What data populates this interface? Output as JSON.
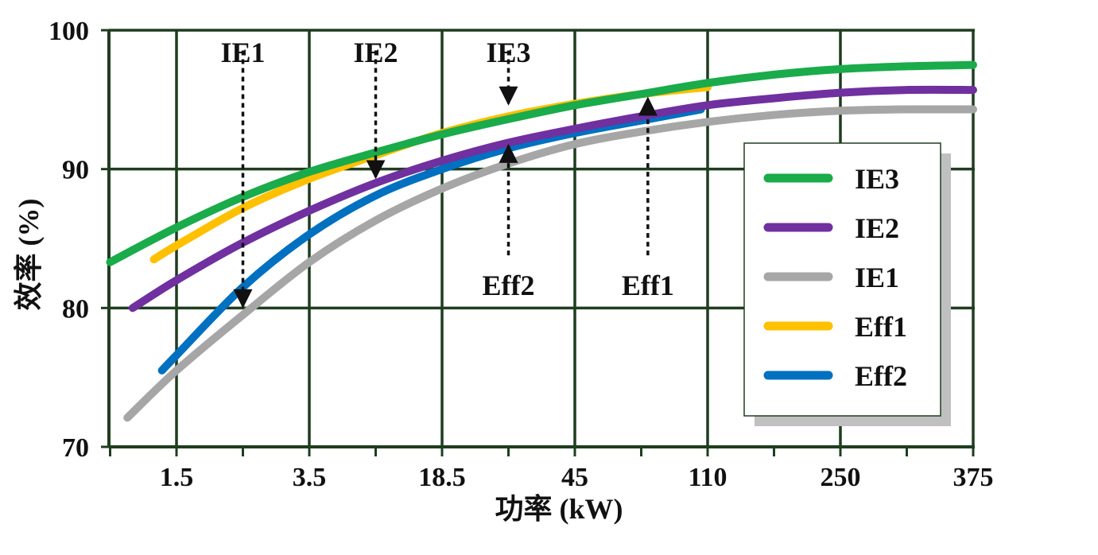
{
  "chart_data": {
    "type": "line",
    "title": "",
    "xlabel": "功率 (kW)",
    "ylabel": "效率 (%)",
    "categories": [
      "1.5",
      "3.5",
      "18.5",
      "45",
      "110",
      "250",
      "375"
    ],
    "ylim": [
      70,
      100
    ],
    "yticks": [
      "70",
      "80",
      "90",
      "100"
    ],
    "grid": true,
    "legend_position": "right",
    "series": [
      {
        "name": "IE3",
        "color": "#1aab4b",
        "points": [
          [
            -0.5,
            83.3
          ],
          [
            0.0,
            85.8
          ],
          [
            0.5,
            88.0
          ],
          [
            1.0,
            89.8
          ],
          [
            1.5,
            91.2
          ],
          [
            2.0,
            92.5
          ],
          [
            2.5,
            93.6
          ],
          [
            3.0,
            94.6
          ],
          [
            3.5,
            95.4
          ],
          [
            4.0,
            96.2
          ],
          [
            4.5,
            96.8
          ],
          [
            5.0,
            97.2
          ],
          [
            5.5,
            97.4
          ],
          [
            6.0,
            97.5
          ]
        ]
      },
      {
        "name": "IE2",
        "color": "#7030a0",
        "points": [
          [
            -0.33,
            80.0
          ],
          [
            0.0,
            82.0
          ],
          [
            0.5,
            84.7
          ],
          [
            1.0,
            87.0
          ],
          [
            1.5,
            89.0
          ],
          [
            2.0,
            90.6
          ],
          [
            2.5,
            91.9
          ],
          [
            3.0,
            92.9
          ],
          [
            3.5,
            93.8
          ],
          [
            4.0,
            94.6
          ],
          [
            4.5,
            95.1
          ],
          [
            5.0,
            95.5
          ],
          [
            5.5,
            95.7
          ],
          [
            6.0,
            95.7
          ]
        ]
      },
      {
        "name": "IE1",
        "color": "#a6a6a6",
        "points": [
          [
            -0.37,
            72.1
          ],
          [
            0.0,
            75.5
          ],
          [
            0.5,
            79.5
          ],
          [
            1.0,
            83.3
          ],
          [
            1.5,
            86.3
          ],
          [
            2.0,
            88.6
          ],
          [
            2.5,
            90.4
          ],
          [
            3.0,
            91.8
          ],
          [
            3.5,
            92.7
          ],
          [
            4.0,
            93.4
          ],
          [
            4.5,
            93.9
          ],
          [
            5.0,
            94.2
          ],
          [
            5.5,
            94.3
          ],
          [
            6.0,
            94.3
          ]
        ]
      },
      {
        "name": "Eff1",
        "color": "#ffc000",
        "points": [
          [
            -0.17,
            83.5
          ],
          [
            0.0,
            84.5
          ],
          [
            0.5,
            87.2
          ],
          [
            1.0,
            89.3
          ],
          [
            1.5,
            91.0
          ],
          [
            2.0,
            92.6
          ],
          [
            2.5,
            93.8
          ],
          [
            3.0,
            94.7
          ],
          [
            3.5,
            95.4
          ],
          [
            4.0,
            95.9
          ]
        ]
      },
      {
        "name": "Eff2",
        "color": "#0070c0",
        "points": [
          [
            -0.11,
            75.5
          ],
          [
            0.0,
            76.6
          ],
          [
            0.5,
            81.5
          ],
          [
            1.0,
            85.3
          ],
          [
            1.5,
            88.1
          ],
          [
            2.0,
            90.0
          ],
          [
            2.5,
            91.5
          ],
          [
            3.0,
            92.6
          ],
          [
            3.5,
            93.5
          ],
          [
            3.95,
            94.3
          ]
        ]
      }
    ],
    "annotations": [
      {
        "label": "IE1",
        "from_y": 99.0,
        "to": [
          0.5,
          80.0
        ]
      },
      {
        "label": "IE2",
        "from_y": 99.0,
        "to": [
          1.5,
          89.3
        ]
      },
      {
        "label": "IE3",
        "from_y": 99.0,
        "to": [
          2.5,
          94.6
        ]
      },
      {
        "label": "Eff2",
        "from_y": 81.5,
        "to": [
          2.5,
          91.8
        ]
      },
      {
        "label": "Eff1",
        "from_y": 81.5,
        "to": [
          3.55,
          95.2
        ]
      }
    ]
  }
}
